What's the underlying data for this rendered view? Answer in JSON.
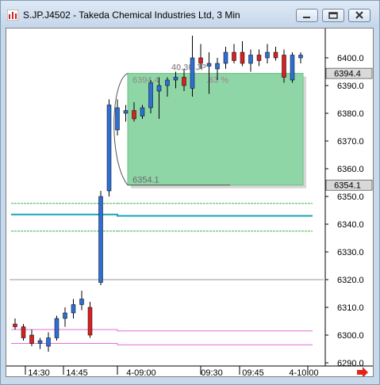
{
  "window": {
    "title": "S.JP.J4502 - Takeda Chemical Industries Ltd, 3 Min"
  },
  "colors": {
    "up_candle": "#2e6fd6",
    "down_candle": "#d42222",
    "box_fill": "#8fd6a6",
    "vwap_line": "#1aa6b7",
    "band_green": "#3cb44b",
    "band_pink": "#e36fd6",
    "price_label_bg": "#d9d9d9"
  },
  "axes": {
    "y_ticks": [
      "6400.0",
      "6390.0",
      "6380.0",
      "6370.0",
      "6360.0",
      "6350.0",
      "6340.0",
      "6330.0",
      "6320.0",
      "6310.0",
      "6300.0",
      "6290.0"
    ],
    "x_ticks": [
      "14:30",
      "14:45",
      "4-09:00",
      "09:30",
      "09:45",
      "4-10:00"
    ]
  },
  "price_labels": {
    "high": "6394.4",
    "low": "6354.1"
  },
  "box_annotation": {
    "high_text": "6394.4",
    "low_text": "6354.1",
    "range_text": "40.30 JP",
    "pct_text": ".63 %"
  },
  "chart_data": {
    "type": "candlestick",
    "title": "S.JP.J4502 - Takeda Chemical Industries Ltd, 3 Min",
    "ylim": [
      6288,
      6408
    ],
    "bars": [
      {
        "o": 6304,
        "h": 6306,
        "l": 6302,
        "c": 6303
      },
      {
        "o": 6303,
        "h": 6304,
        "l": 6298,
        "c": 6299
      },
      {
        "o": 6300,
        "h": 6302,
        "l": 6296,
        "c": 6297
      },
      {
        "o": 6297,
        "h": 6299,
        "l": 6295,
        "c": 6298
      },
      {
        "o": 6296,
        "h": 6301,
        "l": 6294,
        "c": 6299
      },
      {
        "o": 6299,
        "h": 6307,
        "l": 6298,
        "c": 6306
      },
      {
        "o": 6306,
        "h": 6310,
        "l": 6303,
        "c": 6308
      },
      {
        "o": 6308,
        "h": 6313,
        "l": 6306,
        "c": 6311
      },
      {
        "o": 6311,
        "h": 6316,
        "l": 6309,
        "c": 6313
      },
      {
        "o": 6310,
        "h": 6312,
        "l": 6299,
        "c": 6300
      },
      {
        "o": 6319,
        "h": 6352,
        "l": 6318,
        "c": 6350
      },
      {
        "o": 6352,
        "h": 6385,
        "l": 6350,
        "c": 6383
      },
      {
        "o": 6374,
        "h": 6385,
        "l": 6372,
        "c": 6382
      },
      {
        "o": 6380,
        "h": 6383,
        "l": 6377,
        "c": 6381
      },
      {
        "o": 6381,
        "h": 6384,
        "l": 6377,
        "c": 6378
      },
      {
        "o": 6379,
        "h": 6383,
        "l": 6378,
        "c": 6382
      },
      {
        "o": 6382,
        "h": 6392,
        "l": 6380,
        "c": 6391
      },
      {
        "o": 6388,
        "h": 6393,
        "l": 6378,
        "c": 6390
      },
      {
        "o": 6390,
        "h": 6393,
        "l": 6386,
        "c": 6392
      },
      {
        "o": 6392,
        "h": 6395,
        "l": 6389,
        "c": 6393
      },
      {
        "o": 6393,
        "h": 6396,
        "l": 6388,
        "c": 6390
      },
      {
        "o": 6389,
        "h": 6408,
        "l": 6386,
        "c": 6400
      },
      {
        "o": 6400,
        "h": 6405,
        "l": 6396,
        "c": 6398
      },
      {
        "o": 6397,
        "h": 6402,
        "l": 6387,
        "c": 6398
      },
      {
        "o": 6396,
        "h": 6400,
        "l": 6392,
        "c": 6398
      },
      {
        "o": 6398,
        "h": 6404,
        "l": 6396,
        "c": 6402
      },
      {
        "o": 6402,
        "h": 6405,
        "l": 6398,
        "c": 6399
      },
      {
        "o": 6402,
        "h": 6406,
        "l": 6397,
        "c": 6398
      },
      {
        "o": 6398,
        "h": 6403,
        "l": 6395,
        "c": 6401
      },
      {
        "o": 6401,
        "h": 6403,
        "l": 6397,
        "c": 6399
      },
      {
        "o": 6400,
        "h": 6405,
        "l": 6398,
        "c": 6402
      },
      {
        "o": 6402,
        "h": 6404,
        "l": 6399,
        "c": 6400
      },
      {
        "o": 6401,
        "h": 6403,
        "l": 6391,
        "c": 6393
      },
      {
        "o": 6392,
        "h": 6402,
        "l": 6391,
        "c": 6401
      },
      {
        "o": 6400,
        "h": 6402,
        "l": 6398,
        "c": 6401
      }
    ],
    "vwap": {
      "before": 6343.5,
      "after": 6343.0
    },
    "green_bands": {
      "upper": 6347.5,
      "lower": 6337.5
    },
    "pink_bands": [
      6302,
      6297
    ],
    "prev_close": 6320,
    "box": {
      "low": 6354.1,
      "high": 6394.4
    }
  }
}
